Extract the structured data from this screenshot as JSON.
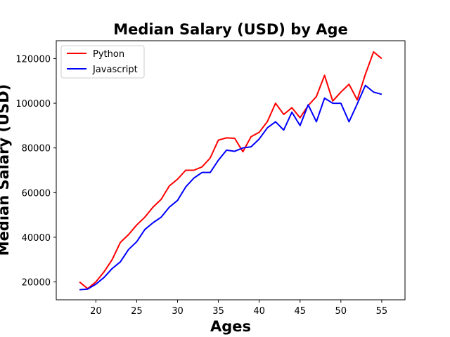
{
  "chart_data": {
    "type": "line",
    "title": "Median Salary (USD) by Age",
    "xlabel": "Ages",
    "ylabel": "Median Salary (USD)",
    "xlim": [
      15.15,
      57.85
    ],
    "ylim": [
      12000,
      128000
    ],
    "xticks": [
      20,
      25,
      30,
      35,
      40,
      45,
      50,
      55
    ],
    "yticks": [
      20000,
      40000,
      60000,
      80000,
      100000,
      120000
    ],
    "grid": false,
    "legend_position": "upper-left",
    "x": [
      18,
      19,
      20,
      21,
      22,
      23,
      24,
      25,
      26,
      27,
      28,
      29,
      30,
      31,
      32,
      33,
      34,
      35,
      36,
      37,
      38,
      39,
      40,
      41,
      42,
      43,
      44,
      45,
      46,
      47,
      48,
      49,
      50,
      51,
      52,
      53,
      54,
      55
    ],
    "series": [
      {
        "name": "Python",
        "color": "#ff0000",
        "values": [
          20000,
          17000,
          20000,
          24500,
          30000,
          37700,
          41200,
          45500,
          49000,
          53500,
          57000,
          63000,
          66000,
          70000,
          70000,
          71500,
          75500,
          83500,
          84500,
          84300,
          78300,
          85000,
          87000,
          91800,
          100000,
          95000,
          98000,
          93500,
          99000,
          103000,
          112500,
          101000,
          105000,
          108500,
          101500,
          113000,
          123000,
          120000
        ]
      },
      {
        "name": "Javascript",
        "color": "#0000ff",
        "values": [
          16500,
          16800,
          19000,
          22000,
          26000,
          29000,
          34500,
          38000,
          43500,
          46500,
          49000,
          53500,
          56500,
          62500,
          66500,
          69000,
          69000,
          74500,
          79000,
          78500,
          80000,
          80500,
          84000,
          89000,
          91700,
          88000,
          96000,
          90000,
          99300,
          91700,
          102300,
          100000,
          100000,
          91700,
          99700,
          108000,
          105000,
          104000
        ]
      }
    ]
  }
}
